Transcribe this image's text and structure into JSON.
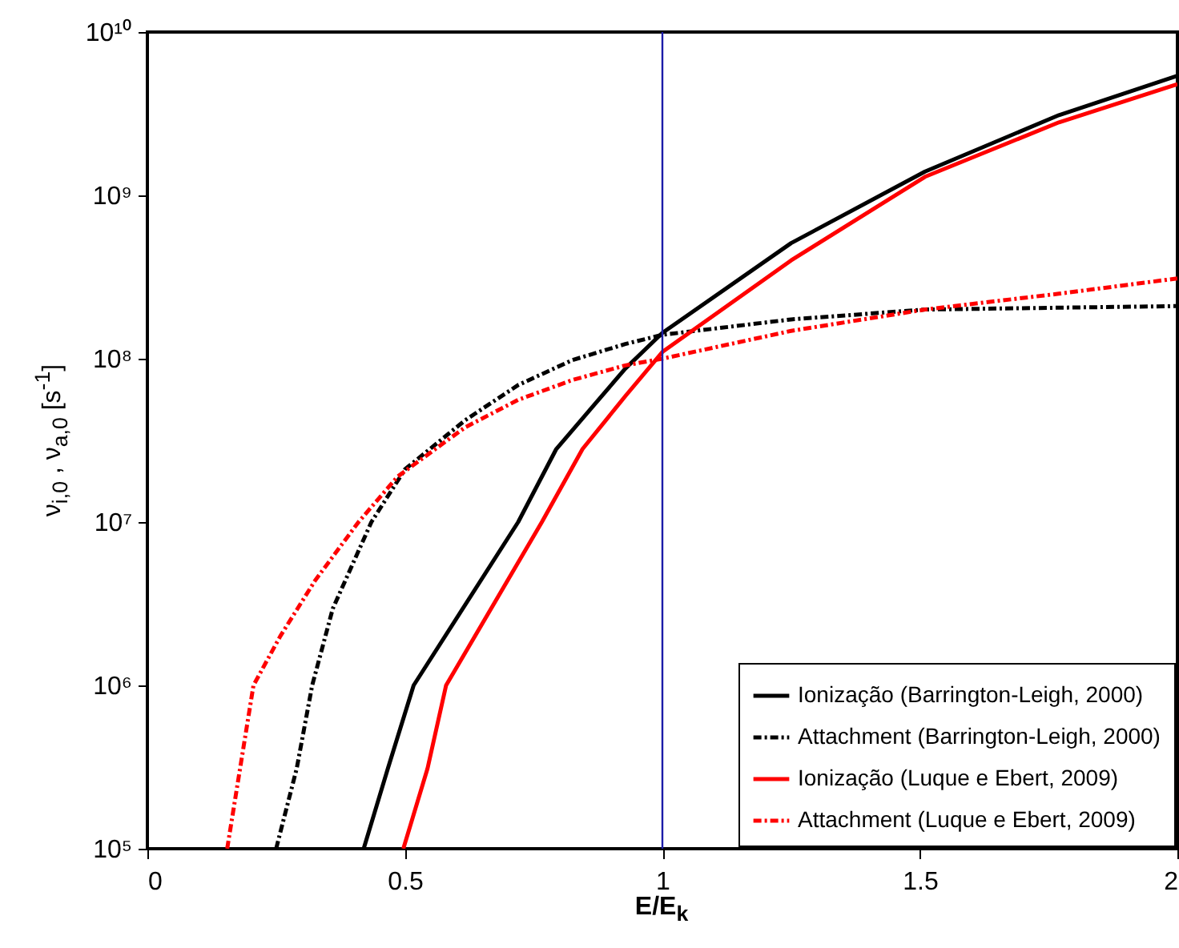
{
  "chart_data": {
    "type": "line",
    "xlabel": "E/E$_{k}$",
    "ylabel": "ν$_{i,0}$ , ν$_{a,0}$  [s$^{-1}$]",
    "log": "y",
    "xlim": [
      0,
      2
    ],
    "xticks": [
      0,
      0.5,
      1,
      1.5,
      2
    ],
    "ylim": [
      100000.0,
      10000000000.0
    ],
    "yticks": [
      {
        "value": 100000.0,
        "label": "10⁵"
      },
      {
        "value": 1000000.0,
        "label": "10⁶"
      },
      {
        "value": 10000000.0,
        "label": "10⁷"
      },
      {
        "value": 100000000.0,
        "label": "10⁸"
      },
      {
        "value": 1000000000.0,
        "label": "10⁹"
      },
      {
        "value": 10000000000.0,
        "label": "10¹⁰"
      }
    ],
    "grid": false,
    "legend": "bottom right",
    "ref_lines": [
      {
        "axis": "x",
        "value": 1,
        "color": "#1c1ca8"
      }
    ],
    "series": [
      {
        "name": "Ionização (Barrington-Leigh, 2000)",
        "color": "#000000",
        "line_style": "solid",
        "x": [
          0.42,
          0.467,
          0.517,
          0.72,
          0.794,
          0.928,
          1,
          1.25,
          1.51,
          1.77,
          2
        ],
        "values": [
          100000.0,
          310000.0,
          1000000.0,
          10000000.0,
          28000000.0,
          87000000.0,
          144000000.0,
          510000000.0,
          1400000000.0,
          3100000000.0,
          5400000000.0
        ]
      },
      {
        "name": "Attachment (Barrington-Leigh, 2000)",
        "color": "#000000",
        "line_style": "dashed",
        "x": [
          0.25,
          0.29,
          0.32,
          0.36,
          0.435,
          0.5,
          0.617,
          0.72,
          0.825,
          0.928,
          1,
          1.25,
          1.51,
          2
        ],
        "values": [
          100000.0,
          310000.0,
          1000000.0,
          2950000.0,
          10000000.0,
          21000000.0,
          42000000.0,
          69000000.0,
          98000000.0,
          123000000.0,
          140000000.0,
          174000000.0,
          200000000.0,
          210000000.0
        ]
      },
      {
        "name": "Ionização (Luque e Ebert, 2009)",
        "color": "#ff0000",
        "line_style": "solid",
        "x": [
          0.497,
          0.544,
          0.58,
          0.766,
          0.845,
          0.928,
          1,
          1.25,
          1.51,
          1.77,
          2
        ],
        "values": [
          100000.0,
          310000.0,
          1000000.0,
          10000000.0,
          28000000.0,
          59000000.0,
          110000000.0,
          400000000.0,
          1300000000.0,
          2800000000.0,
          4800000000.0
        ]
      },
      {
        "name": "Attachment (Luque e Ebert, 2009)",
        "color": "#ff0000",
        "line_style": "dashed",
        "x": [
          0.155,
          0.18,
          0.206,
          0.258,
          0.326,
          0.41,
          0.486,
          0.617,
          0.72,
          0.825,
          0.928,
          1,
          1.25,
          1.51,
          1.77,
          2
        ],
        "values": [
          100000.0,
          310000.0,
          1000000.0,
          2000000.0,
          4400000.0,
          10000000.0,
          19000000.0,
          38000000.0,
          56000000.0,
          74000000.0,
          91000000.0,
          100000000.0,
          148000000.0,
          200000000.0,
          250000000.0,
          310000000.0
        ]
      }
    ]
  }
}
